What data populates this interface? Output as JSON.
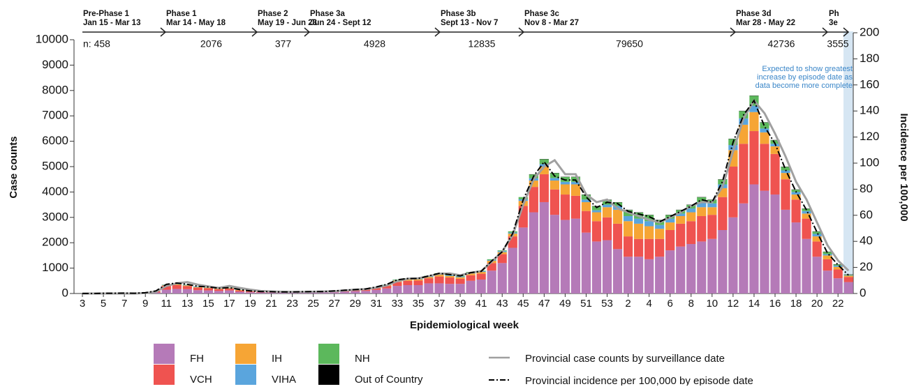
{
  "chart_data": {
    "type": "stacked_bar_line",
    "xlabel": "Epidemiological week",
    "ylabel": "Case counts",
    "y2label": "Incidence per 100,000",
    "annotation": "Expected to show greatest increase by episode date as data become more complete",
    "ylim": [
      0,
      10000
    ],
    "yticks": [
      0,
      1000,
      2000,
      3000,
      4000,
      5000,
      6000,
      7000,
      8000,
      9000,
      10000
    ],
    "y2lim": [
      0,
      200
    ],
    "y2ticks": [
      0,
      20,
      40,
      60,
      80,
      100,
      120,
      140,
      160,
      180,
      200
    ],
    "phases": [
      {
        "name": "Pre-Phase 1",
        "dates": "Jan 15 - Mar 13",
        "n": "n: 458"
      },
      {
        "name": "Phase 1",
        "dates": "Mar 14 - May 18",
        "n": "2076"
      },
      {
        "name": "Phase 2",
        "dates": "May 19 - Jun 23",
        "n": "377"
      },
      {
        "name": "Phase 3a",
        "dates": "Jun 24 - Sept 12",
        "n": "4928"
      },
      {
        "name": "Phase 3b",
        "dates": "Sept 13 - Nov 7",
        "n": "12835"
      },
      {
        "name": "Phase 3c",
        "dates": "Nov 8 - Mar 27",
        "n": "79650"
      },
      {
        "name": "Phase 3d",
        "dates": "Mar 28 - May 22",
        "n": "42736"
      },
      {
        "name": "Ph 3e",
        "n": "3555"
      }
    ],
    "categories": [
      "3",
      null,
      "5",
      null,
      "7",
      null,
      "9",
      null,
      "11",
      null,
      "13",
      null,
      "15",
      null,
      "17",
      null,
      "19",
      null,
      "21",
      null,
      "23",
      null,
      "25",
      null,
      "27",
      null,
      "29",
      null,
      "31",
      null,
      "33",
      null,
      "35",
      null,
      "37",
      null,
      "39",
      null,
      "41",
      null,
      "43",
      null,
      "45",
      null,
      "47",
      null,
      "49",
      null,
      "51",
      null,
      "53",
      null,
      "2",
      null,
      "4",
      null,
      "6",
      null,
      "8",
      null,
      "10",
      null,
      "12",
      null,
      "14",
      null,
      "16",
      null,
      "18",
      null,
      "20",
      null,
      "22",
      null
    ],
    "series": [
      {
        "name": "FH",
        "color": "#b57ab8",
        "values": [
          0,
          0,
          5,
          5,
          5,
          5,
          10,
          40,
          150,
          180,
          170,
          130,
          120,
          100,
          120,
          70,
          50,
          40,
          35,
          30,
          30,
          35,
          40,
          40,
          50,
          70,
          90,
          100,
          140,
          200,
          300,
          330,
          330,
          400,
          400,
          380,
          380,
          500,
          550,
          900,
          1200,
          1800,
          2600,
          3200,
          3600,
          3100,
          2900,
          2950,
          2400,
          2050,
          2100,
          1750,
          1450,
          1450,
          1350,
          1450,
          1700,
          1850,
          1950,
          2050,
          2150,
          2500,
          3000,
          3550,
          4300,
          4050,
          3900,
          3300,
          2800,
          2150,
          1450,
          900,
          600,
          450
        ]
      },
      {
        "name": "VCH",
        "color": "#ef5350",
        "values": [
          0,
          0,
          5,
          5,
          5,
          5,
          15,
          50,
          150,
          150,
          120,
          100,
          90,
          70,
          70,
          50,
          30,
          25,
          20,
          20,
          20,
          20,
          25,
          25,
          30,
          40,
          45,
          50,
          70,
          100,
          150,
          170,
          180,
          200,
          270,
          250,
          200,
          220,
          230,
          300,
          350,
          450,
          850,
          1000,
          1100,
          1000,
          1000,
          900,
          850,
          800,
          900,
          1000,
          800,
          700,
          800,
          700,
          800,
          900,
          900,
          1000,
          950,
          1300,
          2000,
          2350,
          2100,
          1850,
          1600,
          1200,
          900,
          800,
          600,
          450,
          350,
          200
        ]
      },
      {
        "name": "IH",
        "color": "#f6a535",
        "values": [
          0,
          0,
          0,
          0,
          0,
          0,
          5,
          5,
          20,
          30,
          30,
          20,
          20,
          20,
          20,
          20,
          10,
          10,
          10,
          5,
          5,
          10,
          10,
          10,
          15,
          15,
          15,
          20,
          25,
          30,
          60,
          60,
          50,
          50,
          70,
          60,
          60,
          70,
          70,
          90,
          80,
          110,
          200,
          250,
          300,
          350,
          400,
          450,
          350,
          350,
          400,
          550,
          600,
          600,
          500,
          400,
          300,
          300,
          350,
          350,
          300,
          350,
          650,
          750,
          750,
          450,
          300,
          250,
          200,
          200,
          200,
          150,
          100,
          50
        ]
      },
      {
        "name": "VIHA",
        "color": "#5aa5dd",
        "values": [
          0,
          0,
          0,
          0,
          5,
          0,
          0,
          5,
          20,
          20,
          20,
          20,
          10,
          5,
          10,
          5,
          5,
          5,
          5,
          5,
          5,
          5,
          5,
          5,
          5,
          5,
          5,
          5,
          10,
          10,
          20,
          20,
          20,
          30,
          30,
          30,
          30,
          30,
          30,
          30,
          40,
          40,
          60,
          90,
          100,
          100,
          100,
          100,
          100,
          80,
          100,
          150,
          200,
          200,
          200,
          150,
          150,
          100,
          150,
          200,
          150,
          150,
          200,
          250,
          250,
          150,
          100,
          100,
          100,
          100,
          100,
          50,
          50,
          20
        ]
      },
      {
        "name": "NH",
        "color": "#5cb85c",
        "values": [
          0,
          0,
          0,
          0,
          0,
          0,
          0,
          0,
          10,
          20,
          10,
          10,
          10,
          5,
          10,
          5,
          5,
          0,
          0,
          0,
          0,
          0,
          0,
          0,
          0,
          0,
          5,
          5,
          5,
          10,
          20,
          20,
          20,
          20,
          30,
          30,
          30,
          30,
          20,
          30,
          30,
          50,
          90,
          150,
          190,
          190,
          190,
          190,
          190,
          160,
          190,
          140,
          240,
          240,
          240,
          190,
          140,
          140,
          140,
          190,
          140,
          190,
          240,
          290,
          390,
          240,
          140,
          140,
          90,
          90,
          90,
          90,
          40,
          20
        ]
      },
      {
        "name": "Out of Country",
        "color": "#000000",
        "values": [
          0,
          0,
          0,
          0,
          0,
          0,
          0,
          0,
          0,
          0,
          0,
          0,
          0,
          0,
          0,
          0,
          0,
          0,
          0,
          0,
          0,
          0,
          0,
          0,
          0,
          0,
          0,
          0,
          0,
          0,
          0,
          0,
          0,
          0,
          0,
          0,
          0,
          0,
          0,
          0,
          0,
          0,
          0,
          10,
          10,
          10,
          10,
          10,
          10,
          10,
          10,
          10,
          10,
          10,
          10,
          10,
          10,
          10,
          10,
          10,
          10,
          10,
          10,
          10,
          10,
          10,
          10,
          10,
          10,
          10,
          10,
          10,
          10,
          10
        ]
      }
    ],
    "lines": [
      {
        "name": "Provincial case counts by surveillance date",
        "color": "#a0a0a0",
        "axis": "y",
        "values": [
          0,
          0,
          0,
          0,
          0,
          0,
          20,
          60,
          300,
          400,
          450,
          350,
          280,
          220,
          300,
          220,
          150,
          100,
          80,
          70,
          60,
          60,
          70,
          80,
          90,
          120,
          150,
          170,
          230,
          320,
          480,
          580,
          600,
          680,
          780,
          790,
          720,
          820,
          880,
          1250,
          1650,
          2300,
          3500,
          4500,
          5000,
          5250,
          4700,
          4700,
          3900,
          3600,
          3700,
          3350,
          3200,
          3050,
          2900,
          2800,
          3000,
          3200,
          3450,
          3600,
          3600,
          4200,
          5600,
          6900,
          7600,
          7100,
          6300,
          5400,
          4400,
          3700,
          2800,
          1900,
          1300,
          900
        ]
      },
      {
        "name": "Provincial incidence per 100,000 by episode date",
        "color": "#000000",
        "axis": "y2",
        "values": [
          0,
          0,
          0.2,
          0.2,
          0.3,
          0.2,
          0.6,
          2,
          7,
          8,
          7,
          5.5,
          5,
          4,
          4.5,
          3,
          2,
          1.5,
          1.4,
          1.2,
          1.2,
          1.4,
          1.5,
          1.5,
          2,
          2.5,
          3,
          3.5,
          5,
          7,
          10.5,
          11.5,
          11.5,
          13.5,
          15.5,
          14.5,
          13.5,
          16,
          17,
          25,
          32,
          46,
          72,
          90,
          101,
          90,
          87,
          87,
          74,
          66,
          70,
          69,
          63,
          61,
          59,
          55,
          59,
          63,
          67,
          72,
          70,
          86,
          116,
          137,
          148,
          128,
          115,
          95,
          78,
          64,
          47,
          31,
          22,
          14
        ]
      }
    ]
  }
}
